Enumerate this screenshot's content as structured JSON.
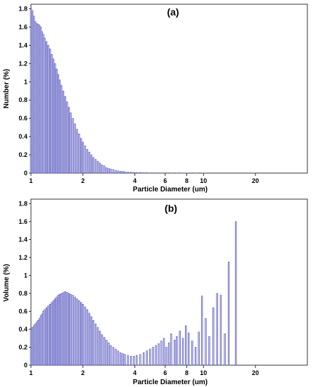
{
  "chart_data": [
    {
      "type": "bar",
      "panel_label": "(a)",
      "xlabel": "Particle Diameter (um)",
      "ylabel": "Number (%)",
      "x_scale": "log",
      "xlim": [
        1,
        40
      ],
      "ylim": [
        0,
        1.85
      ],
      "x_ticks": [
        1,
        2,
        4,
        6,
        8,
        10,
        20
      ],
      "y_ticks": [
        0,
        0.2,
        0.4,
        0.6,
        0.8,
        1,
        1.2,
        1.4,
        1.6,
        1.8
      ],
      "bar_color": "#4b4bb8",
      "grid": false,
      "x": [
        1.0,
        1.02,
        1.04,
        1.06,
        1.08,
        1.1,
        1.12,
        1.14,
        1.16,
        1.18,
        1.2,
        1.23,
        1.26,
        1.29,
        1.32,
        1.35,
        1.38,
        1.41,
        1.44,
        1.47,
        1.5,
        1.54,
        1.58,
        1.62,
        1.66,
        1.7,
        1.75,
        1.8,
        1.85,
        1.9,
        1.95,
        2.0,
        2.06,
        2.12,
        2.18,
        2.24,
        2.3,
        2.37,
        2.44,
        2.51,
        2.58,
        2.66,
        2.74,
        2.82,
        2.9,
        3.0,
        3.1,
        3.2,
        3.3,
        3.4,
        3.5,
        3.65,
        3.8,
        3.95,
        4.1,
        4.3,
        4.5,
        4.7,
        5.0,
        5.5,
        6.0,
        6.5,
        7.0,
        7.5,
        8.0,
        9.0,
        10.0
      ],
      "values": [
        1.8,
        1.78,
        1.72,
        1.66,
        1.64,
        1.63,
        1.62,
        1.6,
        1.55,
        1.52,
        1.48,
        1.44,
        1.4,
        1.36,
        1.3,
        1.25,
        1.2,
        1.14,
        1.08,
        1.02,
        0.96,
        0.9,
        0.84,
        0.78,
        0.72,
        0.66,
        0.6,
        0.54,
        0.48,
        0.43,
        0.38,
        0.34,
        0.3,
        0.26,
        0.23,
        0.2,
        0.17,
        0.15,
        0.13,
        0.11,
        0.09,
        0.08,
        0.06,
        0.05,
        0.045,
        0.04,
        0.03,
        0.025,
        0.02,
        0.018,
        0.015,
        0.012,
        0.01,
        0.008,
        0.006,
        0.005,
        0.004,
        0.004,
        0.003,
        0.003,
        0.002,
        0.002,
        0.002,
        0.001,
        0.001,
        0.001,
        0.001
      ]
    },
    {
      "type": "bar",
      "panel_label": "(b)",
      "xlabel": "Particle Diameter (um)",
      "ylabel": "Volume (%)",
      "x_scale": "log",
      "xlim": [
        1,
        40
      ],
      "ylim": [
        0,
        1.85
      ],
      "x_ticks": [
        1,
        2,
        4,
        6,
        8,
        10,
        20
      ],
      "y_ticks": [
        0,
        0.2,
        0.4,
        0.6,
        0.8,
        1,
        1.2,
        1.4,
        1.6,
        1.8
      ],
      "bar_color": "#4b4bb8",
      "grid": false,
      "x": [
        1.0,
        1.02,
        1.04,
        1.06,
        1.08,
        1.1,
        1.12,
        1.14,
        1.16,
        1.18,
        1.2,
        1.23,
        1.26,
        1.29,
        1.32,
        1.35,
        1.38,
        1.41,
        1.44,
        1.47,
        1.5,
        1.54,
        1.58,
        1.62,
        1.66,
        1.7,
        1.75,
        1.8,
        1.85,
        1.9,
        1.95,
        2.0,
        2.06,
        2.12,
        2.18,
        2.24,
        2.3,
        2.37,
        2.44,
        2.51,
        2.58,
        2.66,
        2.74,
        2.82,
        2.9,
        3.0,
        3.1,
        3.2,
        3.3,
        3.4,
        3.5,
        3.65,
        3.8,
        3.95,
        4.1,
        4.3,
        4.5,
        4.7,
        4.9,
        5.1,
        5.3,
        5.5,
        5.7,
        5.9,
        6.1,
        6.3,
        6.5,
        6.8,
        7.0,
        7.3,
        7.6,
        7.9,
        8.2,
        8.6,
        9.0,
        9.4,
        9.8,
        10.3,
        10.8,
        11.4,
        12.0,
        12.6,
        13.3,
        14.0,
        15.4,
        17.0
      ],
      "values": [
        0.4,
        0.42,
        0.44,
        0.46,
        0.48,
        0.5,
        0.52,
        0.55,
        0.57,
        0.6,
        0.62,
        0.64,
        0.66,
        0.68,
        0.7,
        0.72,
        0.74,
        0.76,
        0.78,
        0.79,
        0.8,
        0.81,
        0.82,
        0.81,
        0.8,
        0.79,
        0.78,
        0.76,
        0.74,
        0.72,
        0.7,
        0.68,
        0.65,
        0.62,
        0.58,
        0.54,
        0.5,
        0.46,
        0.42,
        0.38,
        0.34,
        0.31,
        0.28,
        0.25,
        0.22,
        0.2,
        0.18,
        0.16,
        0.14,
        0.13,
        0.12,
        0.11,
        0.1,
        0.1,
        0.11,
        0.12,
        0.14,
        0.16,
        0.18,
        0.2,
        0.22,
        0.24,
        0.27,
        0.3,
        0.2,
        0.25,
        0.35,
        0.28,
        0.32,
        0.38,
        0.3,
        0.44,
        0.36,
        0.27,
        0.2,
        0.37,
        0.77,
        0.52,
        0.32,
        0.64,
        0.8,
        0.78,
        0.35,
        1.15,
        1.6,
        0.0
      ]
    }
  ]
}
